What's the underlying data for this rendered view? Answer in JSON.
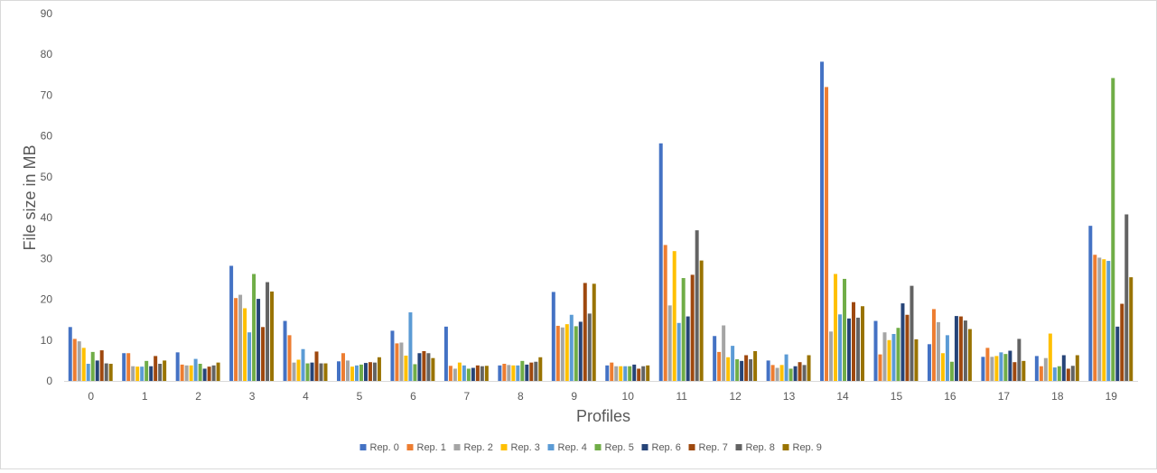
{
  "chart_data": {
    "type": "bar",
    "title": "",
    "xlabel": "Profiles",
    "ylabel": "File size in MB",
    "ylim": [
      0,
      90
    ],
    "yticks": [
      0,
      10,
      20,
      30,
      40,
      50,
      60,
      70,
      80,
      90
    ],
    "grid": false,
    "legend_position": "bottom",
    "categories": [
      "0",
      "1",
      "2",
      "3",
      "4",
      "5",
      "6",
      "7",
      "8",
      "9",
      "10",
      "11",
      "12",
      "13",
      "14",
      "15",
      "16",
      "17",
      "18",
      "19"
    ],
    "series": [
      {
        "name": "Rep. 0",
        "color": "#4472c4",
        "values": [
          13.2,
          6.8,
          7.0,
          28.2,
          14.7,
          4.8,
          12.3,
          13.3,
          3.8,
          21.8,
          3.8,
          58.2,
          11.0,
          5.0,
          78.2,
          14.7,
          9.0,
          5.9,
          6.1,
          38.0
        ]
      },
      {
        "name": "Rep. 1",
        "color": "#ed7d31",
        "values": [
          10.3,
          6.8,
          4.0,
          20.3,
          11.2,
          6.8,
          9.2,
          3.7,
          4.2,
          13.5,
          4.5,
          33.3,
          7.1,
          3.9,
          72.0,
          6.5,
          17.6,
          8.1,
          3.6,
          30.9
        ]
      },
      {
        "name": "Rep. 2",
        "color": "#a5a5a5",
        "values": [
          9.7,
          3.6,
          3.8,
          21.1,
          4.5,
          5.0,
          9.4,
          3.0,
          3.9,
          13.1,
          3.6,
          18.5,
          13.6,
          3.2,
          12.1,
          11.9,
          14.4,
          5.9,
          5.6,
          30.2
        ]
      },
      {
        "name": "Rep. 3",
        "color": "#ffc000",
        "values": [
          8.1,
          3.5,
          3.8,
          17.8,
          5.2,
          3.5,
          6.2,
          4.5,
          3.8,
          13.9,
          3.6,
          31.8,
          5.8,
          3.9,
          26.2,
          10.0,
          6.8,
          6.1,
          11.6,
          29.8
        ]
      },
      {
        "name": "Rep. 4",
        "color": "#5b9bd5",
        "values": [
          4.2,
          3.5,
          5.4,
          11.9,
          7.8,
          3.8,
          16.8,
          3.8,
          3.8,
          16.2,
          3.6,
          14.2,
          8.6,
          6.5,
          16.3,
          11.5,
          11.2,
          7.0,
          3.3,
          29.4
        ]
      },
      {
        "name": "Rep. 5",
        "color": "#70ad47",
        "values": [
          7.1,
          4.9,
          4.2,
          26.2,
          4.3,
          4.0,
          4.1,
          3.0,
          4.9,
          13.4,
          3.6,
          25.2,
          5.3,
          3.0,
          25.0,
          13.0,
          4.7,
          6.6,
          3.6,
          74.2
        ]
      },
      {
        "name": "Rep. 6",
        "color": "#264478",
        "values": [
          5.0,
          3.6,
          3.0,
          20.1,
          4.5,
          4.4,
          6.8,
          3.2,
          4.0,
          14.5,
          4.0,
          15.8,
          4.9,
          3.6,
          15.3,
          19.0,
          15.9,
          7.4,
          6.3,
          13.3
        ]
      },
      {
        "name": "Rep. 7",
        "color": "#9e480e",
        "values": [
          7.5,
          6.1,
          3.5,
          13.2,
          7.2,
          4.6,
          7.3,
          3.8,
          4.5,
          24.0,
          3.0,
          26.0,
          6.3,
          4.6,
          19.3,
          16.2,
          15.8,
          4.6,
          3.0,
          18.9
        ]
      },
      {
        "name": "Rep. 8",
        "color": "#636363",
        "values": [
          4.3,
          4.2,
          3.8,
          24.2,
          4.3,
          4.5,
          6.8,
          3.6,
          4.7,
          16.5,
          3.6,
          36.9,
          5.3,
          3.9,
          15.5,
          23.3,
          14.8,
          10.3,
          3.7,
          40.8
        ]
      },
      {
        "name": "Rep. 9",
        "color": "#997300",
        "values": [
          4.2,
          5.0,
          4.5,
          21.9,
          4.3,
          5.8,
          5.6,
          3.7,
          5.8,
          23.8,
          3.8,
          29.5,
          7.3,
          6.3,
          18.3,
          10.2,
          12.7,
          4.9,
          6.3,
          25.4
        ]
      }
    ]
  }
}
